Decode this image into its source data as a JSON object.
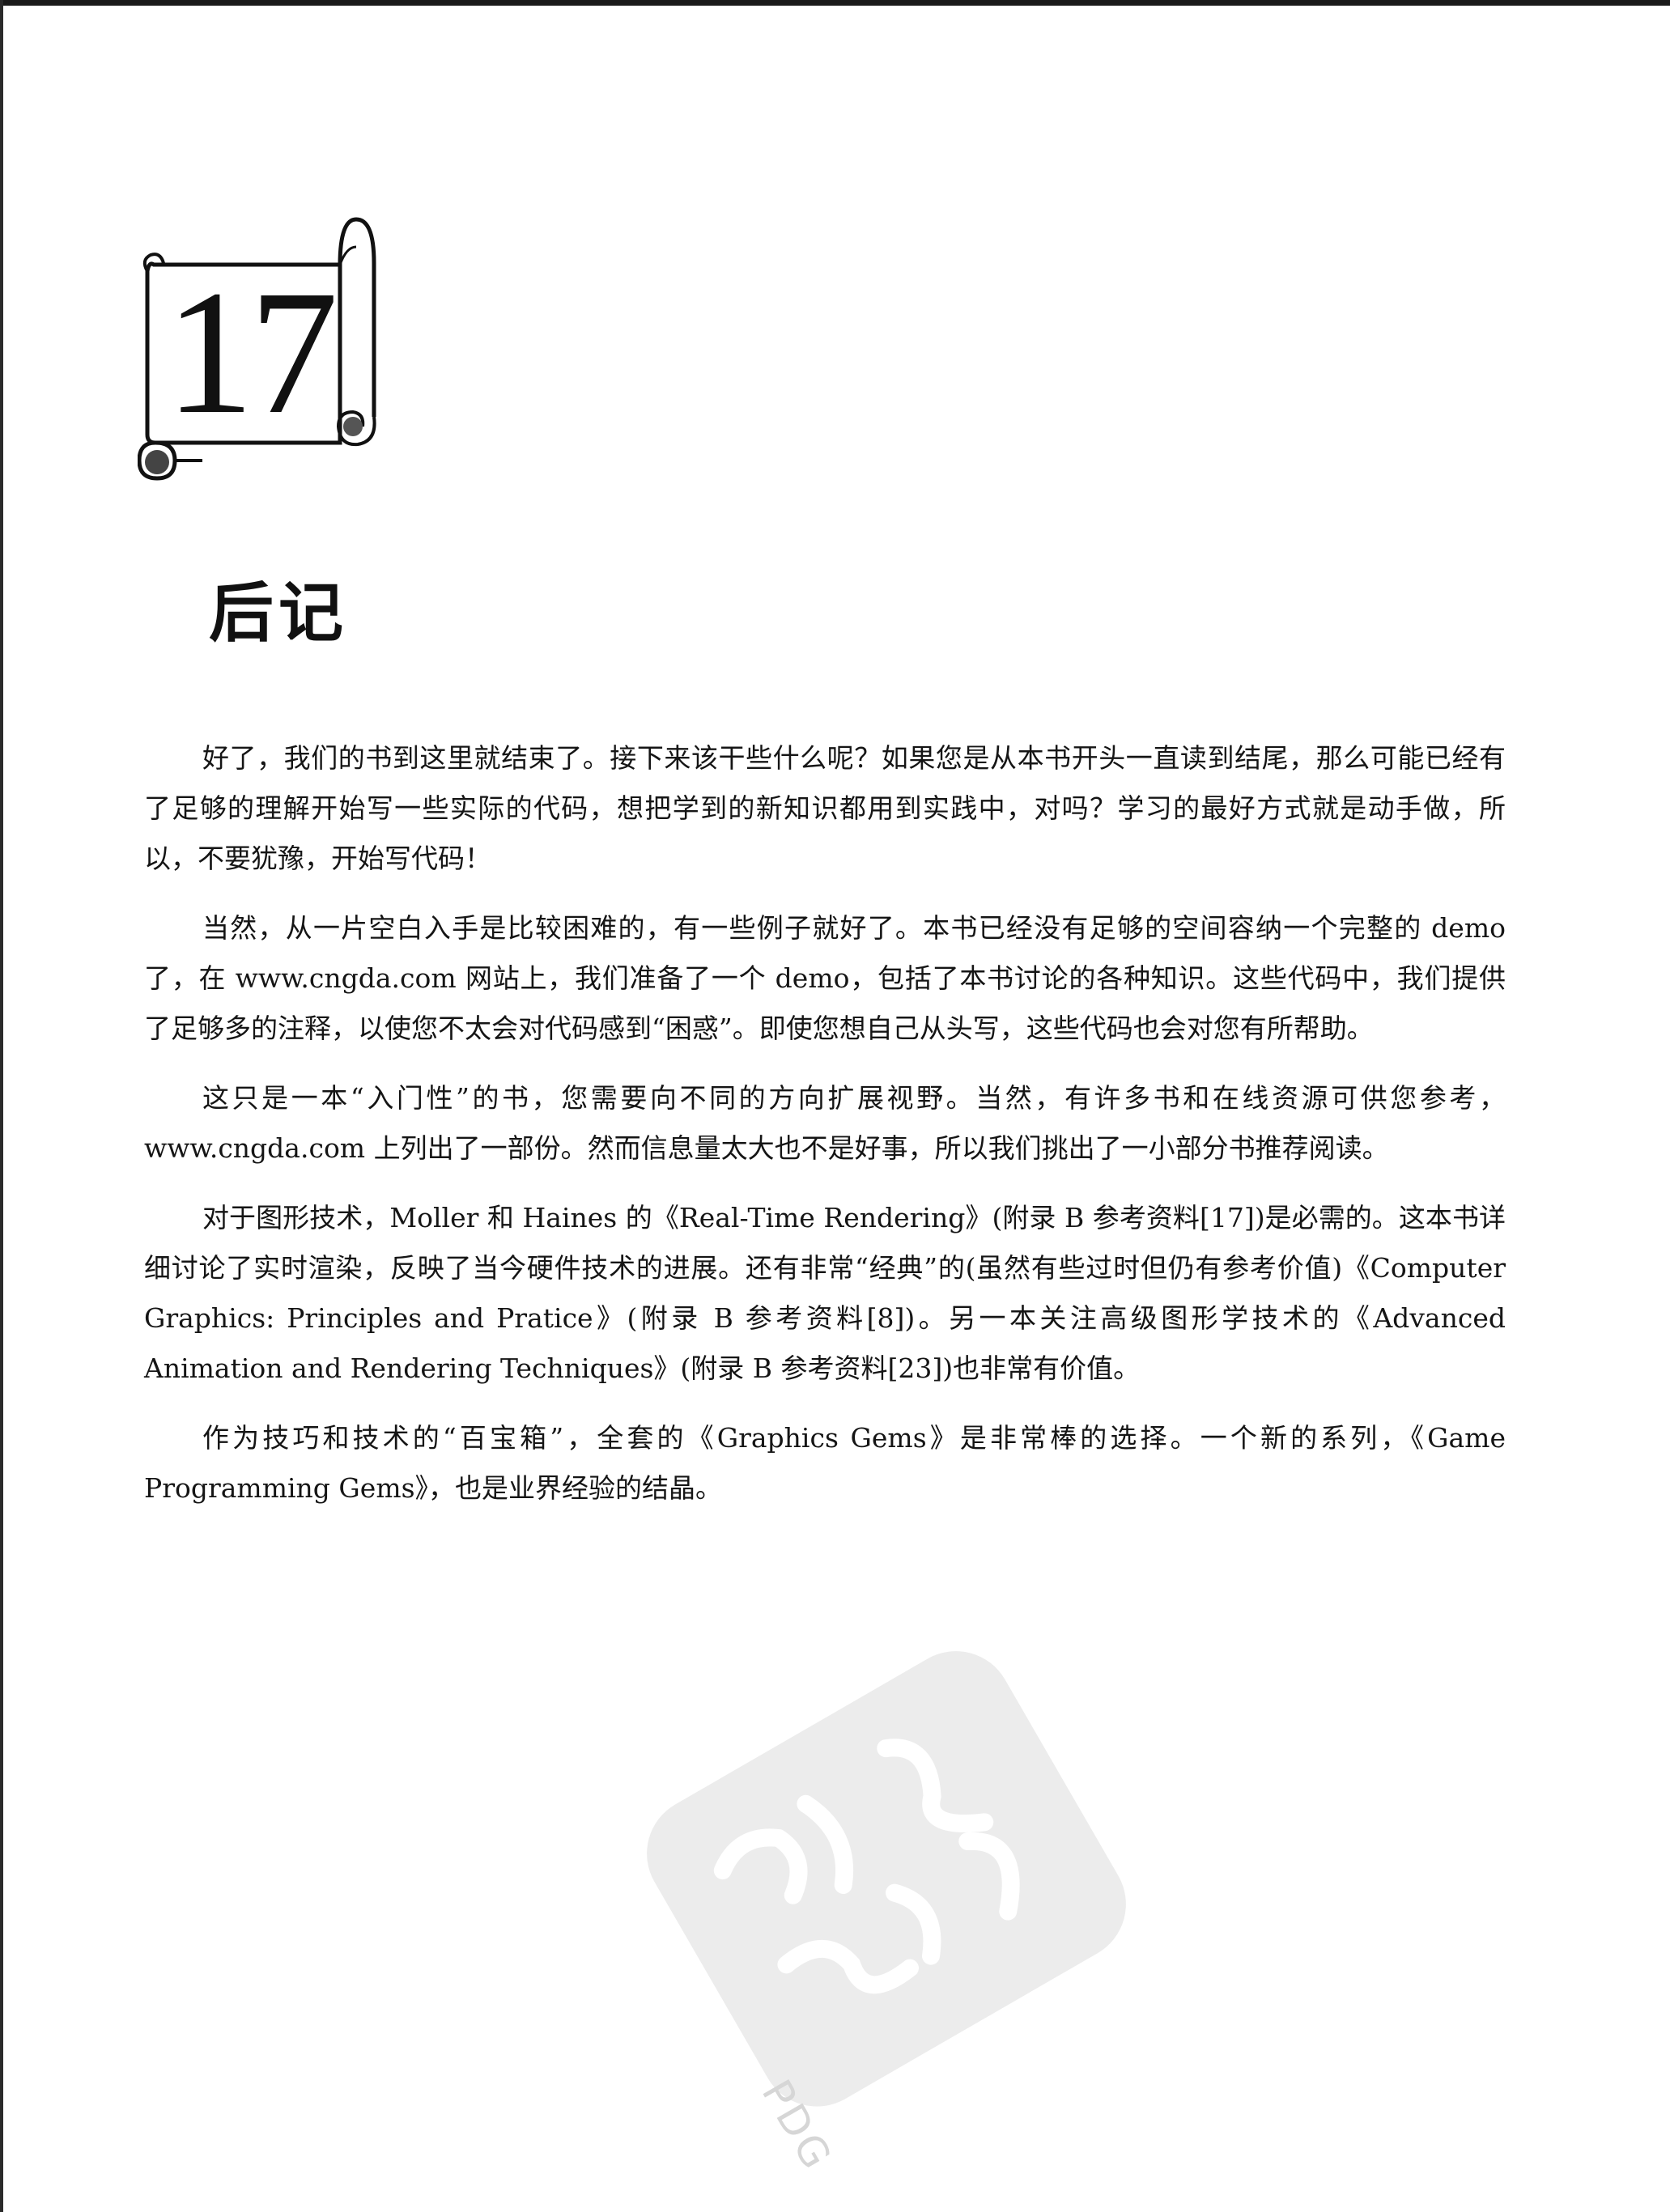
{
  "chapter": {
    "number": "17",
    "title": "后记"
  },
  "paragraphs": [
    "好了，我们的书到这里就结束了。接下来该干些什么呢？如果您是从本书开头一直读到结尾，那么可能已经有了足够的理解开始写一些实际的代码，想把学到的新知识都用到实践中，对吗？学习的最好方式就是动手做，所以，不要犹豫，开始写代码！",
    "当然，从一片空白入手是比较困难的，有一些例子就好了。本书已经没有足够的空间容纳一个完整的 demo 了，在 www.cngda.com 网站上，我们准备了一个 demo，包括了本书讨论的各种知识。这些代码中，我们提供了足够多的注释，以使您不太会对代码感到“困惑”。即使您想自己从头写，这些代码也会对您有所帮助。",
    "这只是一本“入门性”的书，您需要向不同的方向扩展视野。当然，有许多书和在线资源可供您参考，www.cngda.com 上列出了一部份。然而信息量太大也不是好事，所以我们挑出了一小部分书推荐阅读。",
    "对于图形技术，Moller 和 Haines 的《Real-Time Rendering》(附录 B 参考资料[17])是必需的。这本书详细讨论了实时渲染，反映了当今硬件技术的进展。还有非常“经典”的(虽然有些过时但仍有参考价值)《Computer Graphics: Principles and Pratice》(附录 B 参考资料[8])。另一本关注高级图形学技术的《Advanced Animation and Rendering Techniques》(附录 B 参考资料[23])也非常有价值。",
    "作为技巧和技术的“百宝箱”，全套的《Graphics Gems》是非常棒的选择。一个新的系列，《Game Programming Gems》，也是业界经验的结晶。"
  ],
  "watermark": {
    "label": "PDG",
    "color": "#e4e4e4"
  }
}
